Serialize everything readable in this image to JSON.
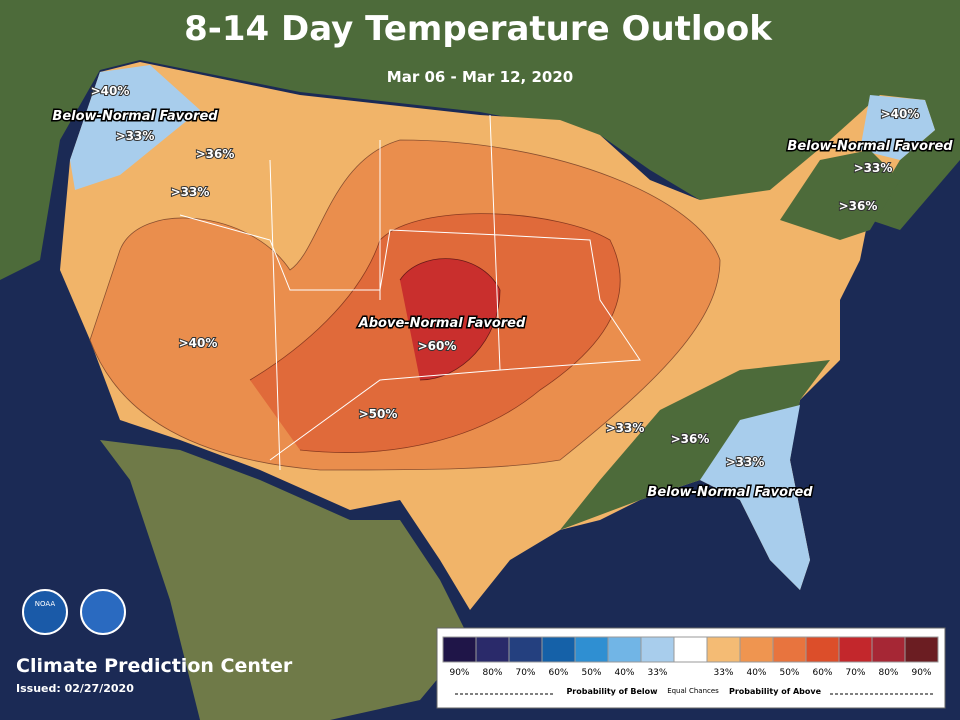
{
  "header": {
    "title": "8-14 Day Temperature Outlook",
    "subtitle": "Mar 06 - Mar 12, 2020"
  },
  "map_labels": [
    ">40%",
    ">33%",
    ">36%",
    "Below-Normal Favored",
    ">33%",
    ">40%",
    ">60%",
    ">50%",
    "Above-Normal Favored",
    ">40%",
    ">33%",
    ">36%",
    "Below-Normal Favored",
    ">33%",
    ">36%",
    ">33%",
    "Below-Normal Favored"
  ],
  "footer": {
    "logo_noaa": "NOAA",
    "org": "Climate Prediction Center",
    "issued": "Issued: 02/27/2020"
  },
  "legend": {
    "items": [
      {
        "label": "90%",
        "color": "#1f1548"
      },
      {
        "label": "80%",
        "color": "#2a2a6a"
      },
      {
        "label": "70%",
        "color": "#24407f"
      },
      {
        "label": "60%",
        "color": "#1561a8"
      },
      {
        "label": "50%",
        "color": "#2f8fd2"
      },
      {
        "label": "40%",
        "color": "#71b5e6"
      },
      {
        "label": "33%",
        "color": "#a8cdec"
      },
      {
        "label": "33%",
        "color": "#f4bb74"
      },
      {
        "label": "40%",
        "color": "#ef9550"
      },
      {
        "label": "50%",
        "color": "#e8743e"
      },
      {
        "label": "60%",
        "color": "#dc4e2a"
      },
      {
        "label": "70%",
        "color": "#c3272c"
      },
      {
        "label": "80%",
        "color": "#a62735"
      },
      {
        "label": "90%",
        "color": "#6b1d22"
      }
    ],
    "below": "Probability of Below",
    "equal": "Equal Chances",
    "above": "Probability of Above"
  }
}
